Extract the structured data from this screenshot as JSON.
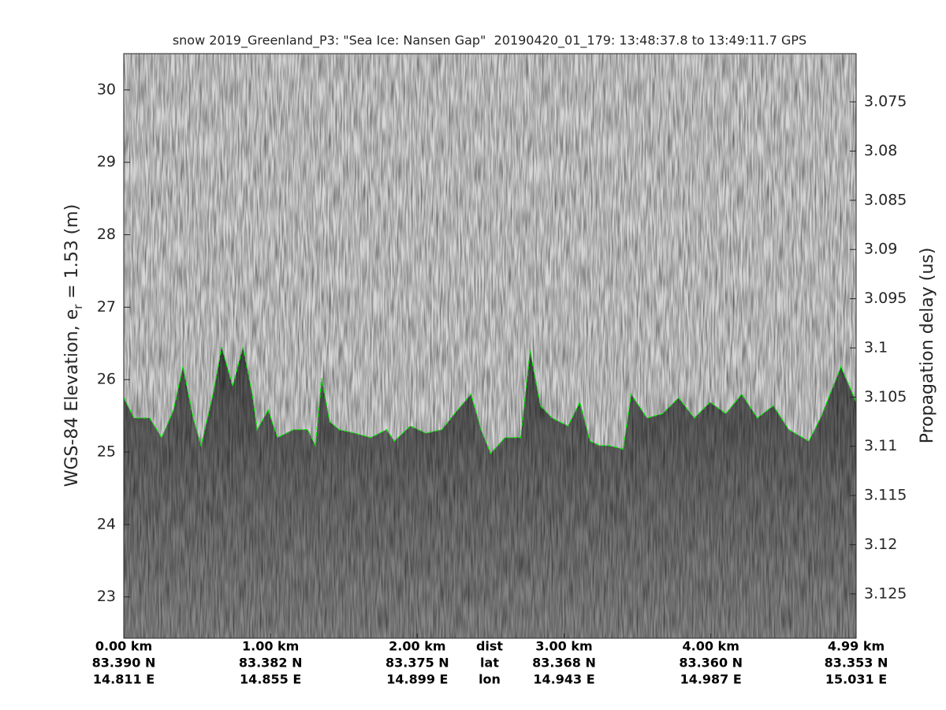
{
  "chart_data": {
    "type": "line",
    "title": "snow 2019_Greenland_P3: \"Sea Ice: Nansen Gap\"  20190420_01_179: 13:48:37.8 to 13:49:11.7 GPS",
    "ylabel": {
      "text": "WGS-84 Elevation, e",
      "subscript": "r",
      "suffix": " = 1.53 (m)"
    },
    "y2label": "Propagation delay (us)",
    "xlim": [
      0,
      4.99
    ],
    "xticks": [
      {
        "value": 0,
        "label": "0.00 km"
      },
      {
        "value": 1,
        "label": "1.00 km"
      },
      {
        "value": 2,
        "label": "2.00 km"
      },
      {
        "value": 3,
        "label": "3.00 km"
      },
      {
        "value": 4,
        "label": "4.00 km"
      },
      {
        "value": 4.99,
        "label": "4.99 km"
      }
    ],
    "lat_labels": [
      "83.390 N",
      "83.382 N",
      "83.375 N",
      "83.368 N",
      "83.360 N",
      "83.353 N"
    ],
    "lon_labels": [
      "14.811 E",
      "14.855 E",
      "14.899 E",
      "14.943 E",
      "14.987 E",
      "15.031 E"
    ],
    "row_names": [
      "dist",
      "lat",
      "lon"
    ],
    "ylim": [
      22.43,
      30.5
    ],
    "yticks": [
      23,
      24,
      25,
      26,
      27,
      28,
      29,
      30
    ],
    "y2lim": [
      3.1295,
      3.0701
    ],
    "y2ticks": [
      3.075,
      3.08,
      3.085,
      3.09,
      3.095,
      3.1,
      3.105,
      3.11,
      3.115,
      3.12,
      3.125
    ],
    "color": "#00ee00",
    "line_style": "dashed",
    "x": [
      0,
      0.07,
      0.177,
      0.258,
      0.339,
      0.403,
      0.473,
      0.527,
      0.608,
      0.667,
      0.742,
      0.812,
      0.876,
      0.909,
      0.984,
      1.048,
      1.156,
      1.253,
      1.306,
      1.349,
      1.403,
      1.468,
      1.575,
      1.683,
      1.79,
      1.844,
      1.952,
      2.059,
      2.167,
      2.274,
      2.366,
      2.435,
      2.5,
      2.597,
      2.704,
      2.769,
      2.839,
      2.919,
      3.027,
      3.108,
      3.177,
      3.242,
      3.306,
      3.403,
      3.457,
      3.565,
      3.672,
      3.78,
      3.887,
      3.995,
      4.102,
      4.21,
      4.317,
      4.425,
      4.532,
      4.667,
      4.747,
      4.887,
      4.99
    ],
    "values": [
      25.75,
      25.47,
      25.47,
      25.2,
      25.58,
      26.18,
      25.47,
      25.09,
      25.8,
      26.45,
      25.91,
      26.45,
      25.8,
      25.31,
      25.58,
      25.2,
      25.31,
      25.31,
      25.09,
      26.02,
      25.42,
      25.31,
      25.26,
      25.2,
      25.31,
      25.15,
      25.36,
      25.26,
      25.31,
      25.58,
      25.8,
      25.31,
      24.98,
      25.2,
      25.2,
      26.4,
      25.64,
      25.47,
      25.36,
      25.69,
      25.15,
      25.09,
      25.09,
      25.04,
      25.8,
      25.47,
      25.53,
      25.75,
      25.47,
      25.69,
      25.53,
      25.8,
      25.47,
      25.64,
      25.31,
      25.15,
      25.47,
      26.18,
      25.69
    ]
  }
}
